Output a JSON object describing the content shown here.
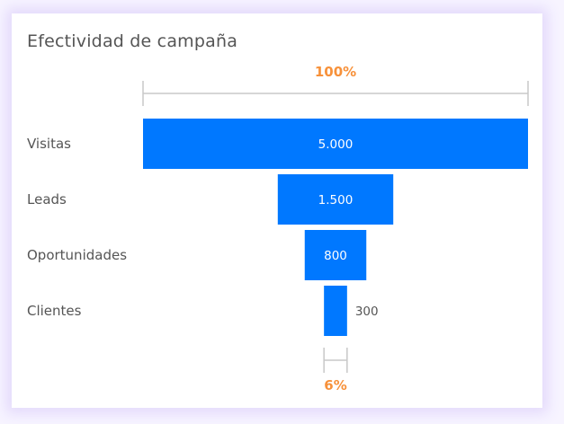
{
  "chart_data": {
    "type": "funnel",
    "title": "Efectividad de campaña",
    "categories": [
      "Visitas",
      "Leads",
      "Oportunidades",
      "Clientes"
    ],
    "values": [
      5000,
      1500,
      800,
      300
    ],
    "value_labels": [
      "5.000",
      "1.500",
      "800",
      "300"
    ],
    "top_percent_label": "100%",
    "bottom_percent_label": "6%",
    "colors": {
      "bar": "#0078ff",
      "percent": "#f7913a",
      "bracket": "#c8c8c8",
      "category": "#555555"
    }
  }
}
